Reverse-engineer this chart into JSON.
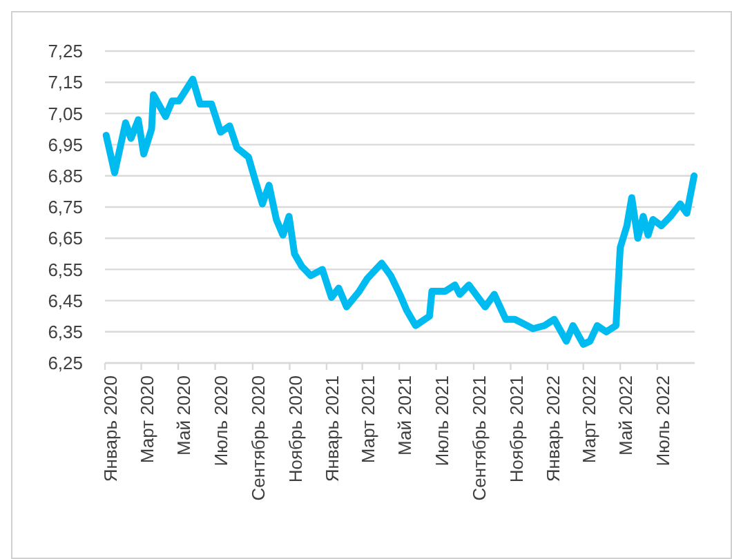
{
  "chart_data": {
    "type": "line",
    "x": [
      "2020-01-03",
      "2020-01-17",
      "2020-02-04",
      "2020-02-13",
      "2020-02-25",
      "2020-03-05",
      "2020-03-18",
      "2020-03-21",
      "2020-04-10",
      "2020-04-21",
      "2020-05-02",
      "2020-05-25",
      "2020-06-06",
      "2020-06-25",
      "2020-07-10",
      "2020-07-25",
      "2020-08-06",
      "2020-08-25",
      "2020-09-06",
      "2020-09-17",
      "2020-09-28",
      "2020-10-10",
      "2020-10-21",
      "2020-10-31",
      "2020-11-09",
      "2020-11-21",
      "2020-12-06",
      "2020-12-25",
      "2021-01-09",
      "2021-01-21",
      "2021-02-03",
      "2021-02-24",
      "2021-03-09",
      "2021-04-02",
      "2021-04-17",
      "2021-05-02",
      "2021-05-13",
      "2021-05-28",
      "2021-06-20",
      "2021-06-24",
      "2021-07-16",
      "2021-08-01",
      "2021-08-09",
      "2021-08-24",
      "2021-09-20",
      "2021-10-05",
      "2021-10-24",
      "2021-11-08",
      "2021-12-08",
      "2021-12-27",
      "2022-01-12",
      "2022-02-01",
      "2022-02-12",
      "2022-03-01",
      "2022-03-12",
      "2022-03-24",
      "2022-04-08",
      "2022-04-24",
      "2022-05-01",
      "2022-05-12",
      "2022-05-20",
      "2022-05-30",
      "2022-06-08",
      "2022-06-16",
      "2022-06-24",
      "2022-07-08",
      "2022-07-23",
      "2022-08-08",
      "2022-08-19",
      "2022-08-31"
    ],
    "series": [
      {
        "color": "#00bbef",
        "values": [
          6.98,
          6.86,
          7.02,
          6.97,
          7.03,
          6.92,
          7.0,
          7.11,
          7.04,
          7.09,
          7.09,
          7.16,
          7.08,
          7.08,
          6.99,
          7.01,
          6.94,
          6.91,
          6.83,
          6.76,
          6.82,
          6.71,
          6.66,
          6.72,
          6.6,
          6.56,
          6.53,
          6.55,
          6.46,
          6.49,
          6.43,
          6.48,
          6.52,
          6.57,
          6.53,
          6.47,
          6.42,
          6.37,
          6.4,
          6.48,
          6.48,
          6.5,
          6.47,
          6.5,
          6.43,
          6.47,
          6.39,
          6.39,
          6.36,
          6.37,
          6.39,
          6.32,
          6.37,
          6.31,
          6.32,
          6.37,
          6.35,
          6.37,
          6.62,
          6.69,
          6.78,
          6.65,
          6.72,
          6.66,
          6.71,
          6.69,
          6.72,
          6.76,
          6.73,
          6.85
        ]
      }
    ],
    "xlim": [
      "2020-01-01",
      "2022-09-01"
    ],
    "xticks": [
      {
        "value": "2020-01-01",
        "label": "Январь 2020"
      },
      {
        "value": "2020-03-01",
        "label": "Март 2020"
      },
      {
        "value": "2020-05-01",
        "label": "Май 2020"
      },
      {
        "value": "2020-07-01",
        "label": "Июль 2020"
      },
      {
        "value": "2020-09-01",
        "label": "Сентябрь 2020"
      },
      {
        "value": "2020-11-01",
        "label": "Ноябрь 2020"
      },
      {
        "value": "2021-01-01",
        "label": "Январь 2021"
      },
      {
        "value": "2021-03-01",
        "label": "Март 2021"
      },
      {
        "value": "2021-05-01",
        "label": "Май 2021"
      },
      {
        "value": "2021-07-01",
        "label": "Июль 2021"
      },
      {
        "value": "2021-09-01",
        "label": "Сентябрь 2021"
      },
      {
        "value": "2021-11-01",
        "label": "Ноябрь 2021"
      },
      {
        "value": "2022-01-01",
        "label": "Январь 2022"
      },
      {
        "value": "2022-03-01",
        "label": "Март 2022"
      },
      {
        "value": "2022-05-01",
        "label": "Май 2022"
      },
      {
        "value": "2022-07-01",
        "label": "Июль 2022"
      }
    ],
    "ylim": [
      6.25,
      7.25
    ],
    "yticks": [
      {
        "value": 6.25,
        "label": "6,25"
      },
      {
        "value": 6.35,
        "label": "6,35"
      },
      {
        "value": 6.45,
        "label": "6,45"
      },
      {
        "value": 6.55,
        "label": "6,55"
      },
      {
        "value": 6.65,
        "label": "6,65"
      },
      {
        "value": 6.75,
        "label": "6,75"
      },
      {
        "value": 6.85,
        "label": "6,85"
      },
      {
        "value": 6.95,
        "label": "6,95"
      },
      {
        "value": 7.05,
        "label": "7,05"
      },
      {
        "value": 7.15,
        "label": "7,15"
      },
      {
        "value": 7.25,
        "label": "7,25"
      }
    ],
    "grid": "y",
    "marker": "none",
    "line_style": "solid"
  }
}
